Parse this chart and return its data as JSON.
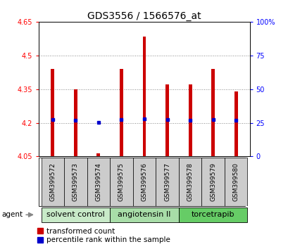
{
  "title": "GDS3556 / 1566576_at",
  "samples": [
    "GSM399572",
    "GSM399573",
    "GSM399574",
    "GSM399575",
    "GSM399576",
    "GSM399577",
    "GSM399578",
    "GSM399579",
    "GSM399580"
  ],
  "transformed_counts": [
    4.44,
    4.35,
    4.065,
    4.44,
    4.585,
    4.37,
    4.37,
    4.44,
    4.34
  ],
  "percentile_ranks": [
    4.215,
    4.212,
    4.202,
    4.215,
    4.216,
    4.214,
    4.212,
    4.215,
    4.212
  ],
  "bar_bottom": 4.05,
  "ylim_left": [
    4.05,
    4.65
  ],
  "ylim_right": [
    0,
    100
  ],
  "yticks_left": [
    4.05,
    4.2,
    4.35,
    4.5,
    4.65
  ],
  "yticks_right": [
    0,
    25,
    50,
    75,
    100
  ],
  "ytick_labels_left": [
    "4.05",
    "4.2",
    "4.35",
    "4.5",
    "4.65"
  ],
  "ytick_labels_right": [
    "0",
    "25",
    "50",
    "75",
    "100%"
  ],
  "groups": [
    {
      "label": "solvent control",
      "samples": [
        0,
        1,
        2
      ],
      "color": "#c8eac8"
    },
    {
      "label": "angiotensin II",
      "samples": [
        3,
        4,
        5
      ],
      "color": "#a8dda8"
    },
    {
      "label": "torcetrapib",
      "samples": [
        6,
        7,
        8
      ],
      "color": "#66cc66"
    }
  ],
  "bar_color": "#cc0000",
  "percentile_color": "#0000cc",
  "grid_color": "#888888",
  "bg_sample_row": "#cccccc",
  "legend_red_label": "transformed count",
  "legend_blue_label": "percentile rank within the sample",
  "agent_label": "agent",
  "title_fontsize": 10,
  "tick_fontsize": 7,
  "legend_fontsize": 7.5,
  "group_label_fontsize": 8,
  "sample_fontsize": 6.5
}
